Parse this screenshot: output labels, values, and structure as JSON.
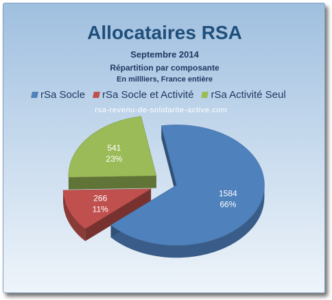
{
  "chart_data": {
    "type": "pie",
    "title": "Allocataires RSA",
    "subtitle": "Septembre 2014",
    "subtitle2": "Répartition par composante",
    "subtitle3": "En millliers, France entière",
    "watermark": "rsa-revenu-de-solidarite-active.com",
    "legend_position": "top",
    "exploded": true,
    "slices": [
      {
        "name": "rSa Socle",
        "value": 1584,
        "percent": "66%",
        "color": "#4f81bd"
      },
      {
        "name": "rSa Socle et Activité",
        "value": 266,
        "percent": "11%",
        "color": "#c0504d"
      },
      {
        "name": "rSa Activité Seul",
        "value": 541,
        "percent": "23%",
        "color": "#9bbb59"
      }
    ]
  }
}
